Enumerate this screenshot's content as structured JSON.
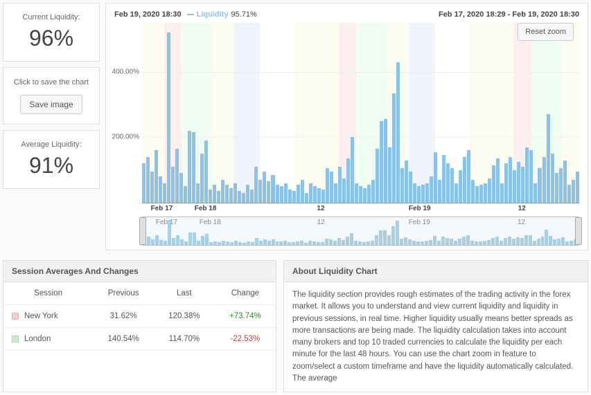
{
  "left": {
    "current_label": "Current Liquidity:",
    "current_value": "96%",
    "save_hint": "Click to save the chart",
    "save_button": "Save image",
    "average_label": "Average Liquidity:",
    "average_value": "91%"
  },
  "chart": {
    "hover_time": "Feb 19, 2020 18:30",
    "legend_name": "Liquidity",
    "legend_value": "95.71%",
    "range_label": "Feb 17, 2020 18:29 - Feb 19, 2020 18:30",
    "reset_label": "Reset zoom",
    "type": "bar",
    "bar_color": "#8bc2e8",
    "grid_color": "#eeeeee",
    "background_color": "#ffffff",
    "ylim": [
      0,
      550
    ],
    "yticks": [
      {
        "v": 200,
        "label": "200.00%"
      },
      {
        "v": 400,
        "label": "400.00%"
      }
    ],
    "x_ticks": [
      {
        "pos": 0.02,
        "label": "Feb 17"
      },
      {
        "pos": 0.12,
        "label": "Feb 18"
      },
      {
        "pos": 0.4,
        "label": "12"
      },
      {
        "pos": 0.61,
        "label": "Feb 19"
      },
      {
        "pos": 0.86,
        "label": "12"
      }
    ],
    "mini_x_ticks": [
      {
        "pos": 0.03,
        "label": "Feb 17"
      },
      {
        "pos": 0.13,
        "label": "Feb 18"
      },
      {
        "pos": 0.4,
        "label": "12"
      },
      {
        "pos": 0.61,
        "label": "Feb 19"
      },
      {
        "pos": 0.86,
        "label": "12"
      }
    ],
    "bg_bands": [
      {
        "w": 0.05,
        "c": "#fdfcf0"
      },
      {
        "w": 0.04,
        "c": "#fdeff0"
      },
      {
        "w": 0.07,
        "c": "#f0fdf2"
      },
      {
        "w": 0.05,
        "c": "#fdfcf0"
      },
      {
        "w": 0.06,
        "c": "#f0f5fd"
      },
      {
        "w": 0.08,
        "c": "#ffffff"
      },
      {
        "w": 0.1,
        "c": "#fdfcf0"
      },
      {
        "w": 0.04,
        "c": "#fdeff0"
      },
      {
        "w": 0.07,
        "c": "#f0fdf2"
      },
      {
        "w": 0.05,
        "c": "#fdfcf0"
      },
      {
        "w": 0.06,
        "c": "#f0f5fd"
      },
      {
        "w": 0.08,
        "c": "#ffffff"
      },
      {
        "w": 0.1,
        "c": "#fdfcf0"
      },
      {
        "w": 0.04,
        "c": "#fdeff0"
      },
      {
        "w": 0.07,
        "c": "#f0fdf2"
      },
      {
        "w": 0.04,
        "c": "#fdfcf0"
      }
    ],
    "values": [
      120,
      140,
      95,
      160,
      80,
      60,
      520,
      110,
      165,
      90,
      50,
      220,
      215,
      60,
      150,
      190,
      40,
      55,
      35,
      70,
      55,
      45,
      60,
      35,
      30,
      55,
      40,
      110,
      70,
      95,
      65,
      85,
      55,
      50,
      60,
      40,
      35,
      55,
      70,
      30,
      60,
      50,
      45,
      40,
      105,
      95,
      60,
      110,
      75,
      135,
      200,
      60,
      50,
      45,
      55,
      70,
      165,
      250,
      255,
      170,
      335,
      430,
      105,
      130,
      95,
      60,
      50,
      55,
      60,
      80,
      155,
      70,
      145,
      120,
      105,
      60,
      100,
      140,
      160,
      70,
      50,
      55,
      60,
      75,
      115,
      135,
      60,
      120,
      140,
      100,
      125,
      110,
      170,
      160,
      60,
      105,
      140,
      270,
      150,
      90,
      105,
      130,
      55,
      70,
      95
    ],
    "mini_values": [
      25,
      30,
      20,
      35,
      18,
      14,
      90,
      24,
      34,
      20,
      12,
      45,
      44,
      14,
      32,
      40,
      10,
      13,
      9,
      16,
      13,
      11,
      14,
      9,
      8,
      13,
      10,
      24,
      16,
      21,
      15,
      19,
      13,
      12,
      14,
      10,
      9,
      13,
      16,
      8,
      14,
      12,
      11,
      10,
      23,
      21,
      14,
      24,
      17,
      29,
      42,
      14,
      12,
      11,
      13,
      16,
      35,
      52,
      53,
      36,
      68,
      88,
      23,
      28,
      21,
      14,
      12,
      13,
      14,
      18,
      33,
      16,
      31,
      26,
      23,
      14,
      22,
      30,
      34,
      16,
      12,
      13,
      14,
      17,
      25,
      29,
      14,
      26,
      30,
      22,
      27,
      24,
      36,
      34,
      14,
      23,
      30,
      56,
      32,
      20,
      23,
      28,
      13,
      16,
      21
    ]
  },
  "sessions": {
    "title": "Session Averages And Changes",
    "columns": [
      "Session",
      "Previous",
      "Last",
      "Change"
    ],
    "rows": [
      {
        "color": "#f6cccc",
        "name": "New York",
        "prev": "31.62%",
        "last": "120.38%",
        "change": "+73.74%",
        "dir": "pos"
      },
      {
        "color": "#cdeccd",
        "name": "London",
        "prev": "140.54%",
        "last": "114.70%",
        "change": "-22.53%",
        "dir": "neg"
      }
    ]
  },
  "about": {
    "title": "About Liquidity Chart",
    "text": "The liquidity section provides rough estimates of the trading activity in the forex market. It allows you to understand and view current liquidity and liquidity in previous sessions, in real time. Higher liquidity usually means better spreads as more transactions are being made. The liquidity calculation takes into account many brokers and top 10 traded currencies to calculate the liquidity per each minute for the last 48 hours. You can use the chart zoom in feature to zoom/select a custom timeframe and have the liquidity automatically calculated. The average"
  }
}
